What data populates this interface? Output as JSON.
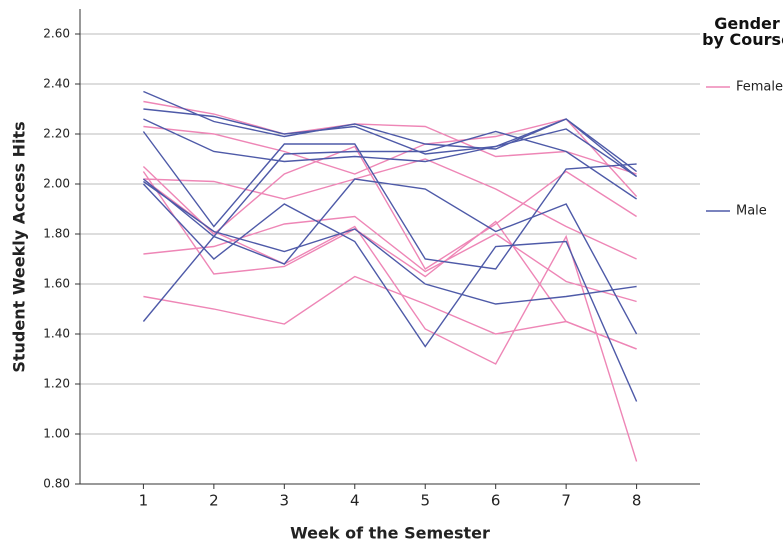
{
  "chart_data": {
    "type": "line",
    "x_label": "Week of the Semester",
    "y_label": "Student Weekly Access Hits",
    "legend_title": "Gender by Course",
    "legend": "right",
    "grid": true,
    "x": [
      1,
      2,
      3,
      4,
      5,
      6,
      7,
      8
    ],
    "xlim": [
      0.1,
      8.9
    ],
    "xticks": [
      1,
      2,
      3,
      4,
      5,
      6,
      7,
      8
    ],
    "ylim": [
      0.8,
      2.7
    ],
    "yticks": [
      {
        "value": 0.8,
        "label": "0.80"
      },
      {
        "value": 1.0,
        "label": "1.00"
      },
      {
        "value": 1.2,
        "label": "1.20"
      },
      {
        "value": 1.4,
        "label": "1.40"
      },
      {
        "value": 1.6,
        "label": "1.60"
      },
      {
        "value": 1.8,
        "label": "1.80"
      },
      {
        "value": 2.0,
        "label": "2.00"
      },
      {
        "value": 2.2,
        "label": "2.20"
      },
      {
        "value": 2.4,
        "label": "2.40"
      },
      {
        "value": 2.6,
        "label": "2.60"
      }
    ],
    "groups": [
      {
        "name": "Female",
        "color": "#ee86b6",
        "lines": [
          [
            2.33,
            2.28,
            2.2,
            2.24,
            2.23,
            2.11,
            2.13,
            2.04
          ],
          [
            2.23,
            2.2,
            2.13,
            2.04,
            2.16,
            2.19,
            2.26,
            1.95
          ],
          [
            2.07,
            1.8,
            2.04,
            2.15,
            1.66,
            1.84,
            2.05,
            1.87
          ],
          [
            2.02,
            2.01,
            1.94,
            2.02,
            2.1,
            1.98,
            1.83,
            1.7
          ],
          [
            1.72,
            1.75,
            1.84,
            1.87,
            1.65,
            1.8,
            1.61,
            1.53
          ],
          [
            2.05,
            1.64,
            1.67,
            1.82,
            1.63,
            1.85,
            1.45,
            1.34
          ],
          [
            1.55,
            1.5,
            1.44,
            1.63,
            1.52,
            1.4,
            1.45,
            1.34
          ],
          [
            2.02,
            1.81,
            1.68,
            1.83,
            1.42,
            1.28,
            1.79,
            0.89
          ]
        ]
      },
      {
        "name": "Male",
        "color": "#4e5aa8",
        "lines": [
          [
            2.37,
            2.25,
            2.19,
            2.24,
            2.16,
            2.14,
            2.26,
            2.05
          ],
          [
            2.3,
            2.27,
            2.2,
            2.23,
            2.12,
            2.15,
            2.26,
            2.03
          ],
          [
            2.26,
            2.13,
            2.09,
            2.11,
            2.09,
            2.15,
            2.22,
            2.03
          ],
          [
            2.21,
            1.83,
            2.16,
            2.16,
            1.7,
            1.66,
            2.06,
            2.08
          ],
          [
            2.01,
            1.81,
            1.73,
            1.82,
            1.6,
            1.52,
            1.55,
            1.59
          ],
          [
            2.0,
            1.7,
            1.92,
            1.77,
            1.35,
            1.75,
            1.77,
            1.13
          ],
          [
            1.45,
            1.79,
            1.68,
            2.02,
            1.98,
            1.81,
            1.92,
            1.4
          ],
          [
            2.02,
            1.79,
            2.12,
            2.13,
            2.13,
            2.21,
            2.13,
            1.94
          ]
        ]
      }
    ]
  }
}
